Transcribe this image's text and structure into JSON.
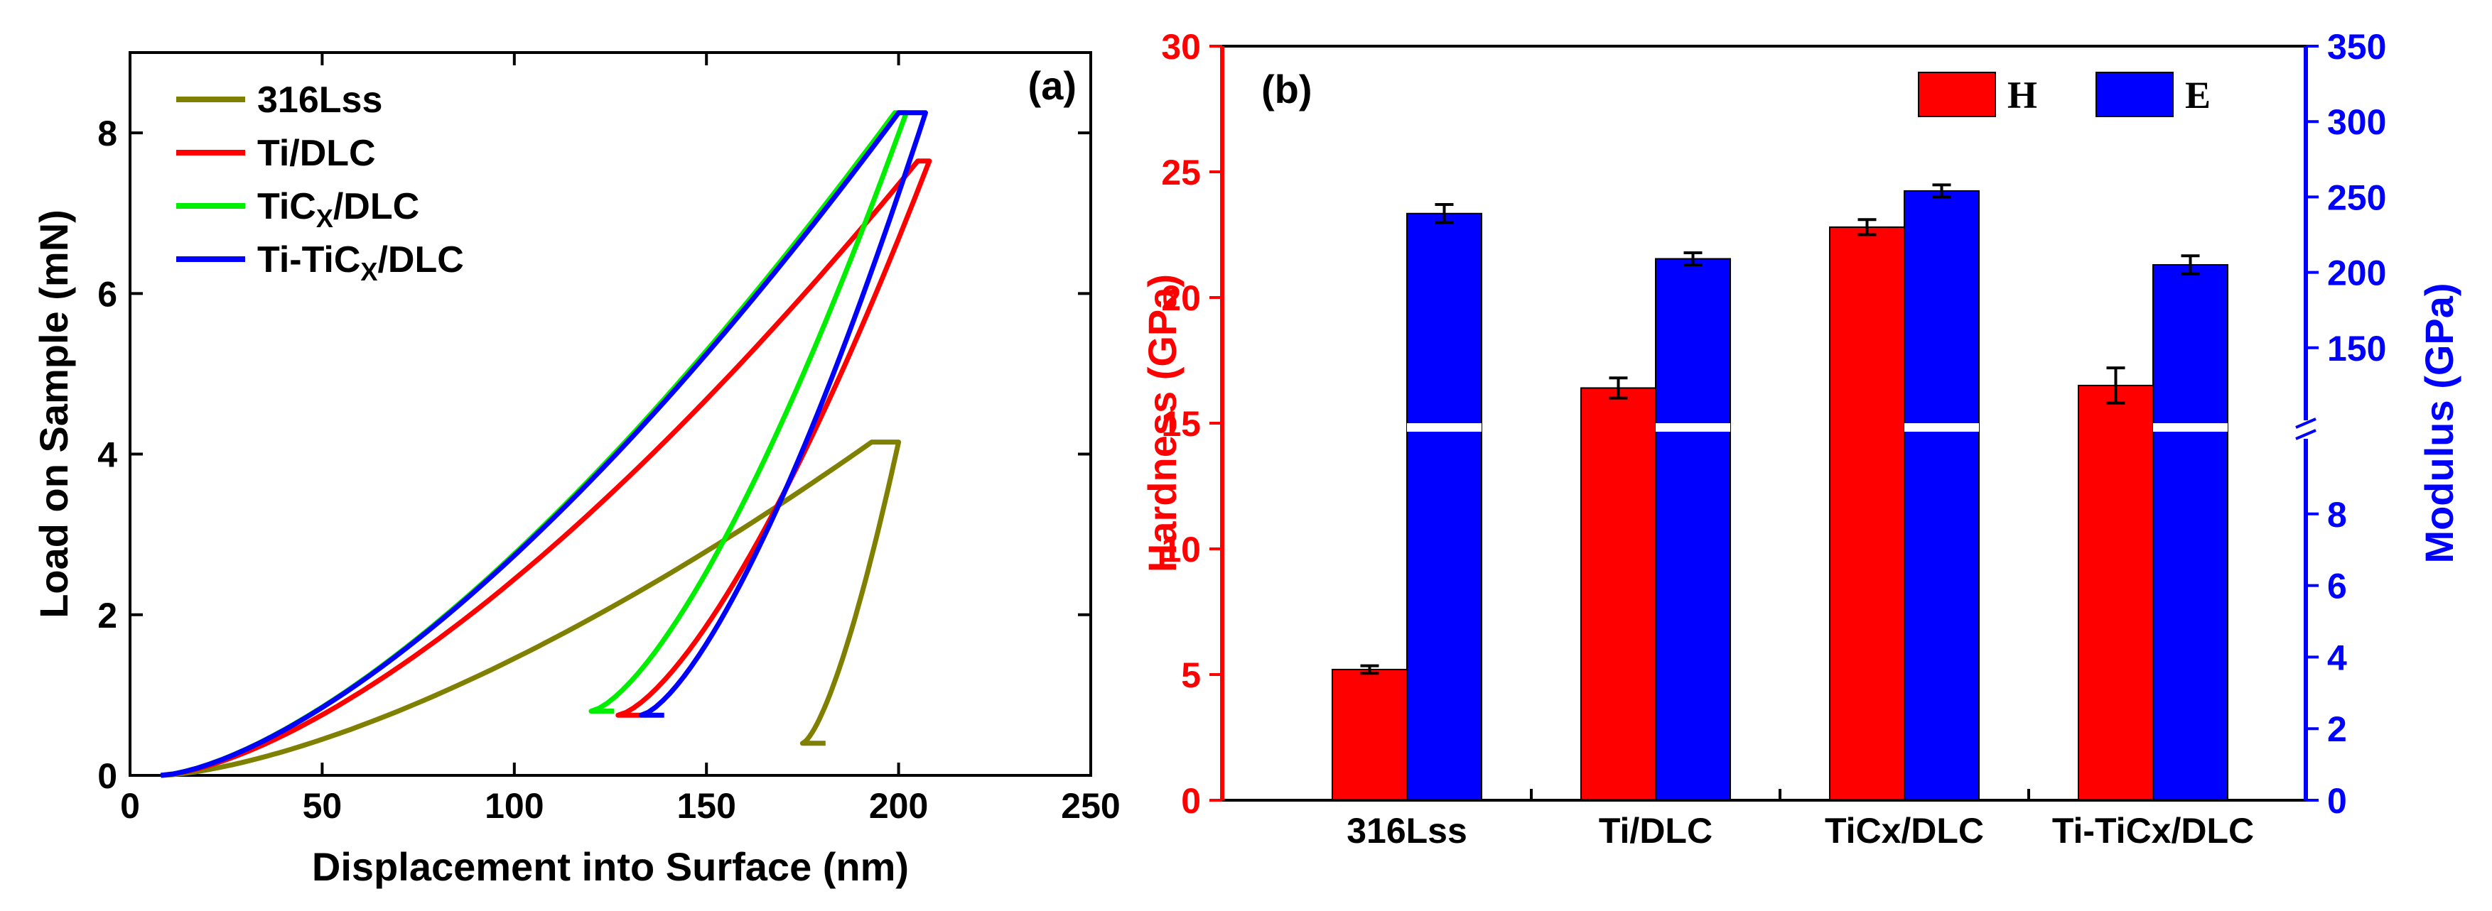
{
  "chart_data": [
    {
      "panel": "(a)",
      "type": "line",
      "xlabel": "Displacement into Surface (nm)",
      "ylabel": "Load on Sample (mN)",
      "xlim": [
        0,
        250
      ],
      "ylim": [
        0,
        9
      ],
      "xticks": [
        "0",
        "50",
        "100",
        "150",
        "200",
        "250"
      ],
      "yticks": [
        "0",
        "2",
        "4",
        "6",
        "8"
      ],
      "series": [
        {
          "name": "316Lss",
          "label_main": "316Lss",
          "label_sub": "",
          "label_tail": "",
          "color": "#808000",
          "max_depth": 200,
          "max_load": 4.15,
          "hold_start": 193,
          "residual_depth": 175,
          "end_load": 0.4
        },
        {
          "name": "Ti/DLC",
          "label_main": "Ti/DLC",
          "label_sub": "",
          "label_tail": "",
          "color": "#ff0000",
          "max_depth": 208,
          "max_load": 7.65,
          "hold_start": 205,
          "residual_depth": 127,
          "end_load": 0.75
        },
        {
          "name": "TiCx/DLC",
          "label_main": "TiC",
          "label_sub": "X",
          "label_tail": "/DLC",
          "color": "#00ee00",
          "max_depth": 202,
          "max_load": 8.25,
          "hold_start": 199,
          "residual_depth": 120,
          "end_load": 0.8
        },
        {
          "name": "Ti-TiCx/DLC",
          "label_main": "Ti-TiC",
          "label_sub": "X",
          "label_tail": "/DLC",
          "color": "#0000ff",
          "max_depth": 207,
          "max_load": 8.25,
          "hold_start": 200,
          "residual_depth": 133,
          "end_load": 0.75
        }
      ]
    },
    {
      "panel": "(b)",
      "type": "bar",
      "categories": [
        "316Lss",
        "Ti/DLC",
        "TiCx/DLC",
        "Ti-TiCx/DLC"
      ],
      "ylabel_left": "Hardness (GPa)",
      "ylabel_right": "Modulus  (GPa)",
      "ylim_left": [
        0,
        30
      ],
      "yticks_left": [
        "0",
        "5",
        "10",
        "15",
        "20",
        "25",
        "30"
      ],
      "yticks_right_upper": [
        "150",
        "200",
        "250",
        "300",
        "350"
      ],
      "yticks_right_lower": [
        "0",
        "2",
        "4",
        "6",
        "8"
      ],
      "right_axis_break": {
        "lower_range": [
          0,
          10
        ],
        "upper_range": [
          100,
          350
        ]
      },
      "series": [
        {
          "name": "H",
          "axis": "left",
          "color": "#ff0000",
          "values": [
            5.2,
            16.4,
            22.8,
            16.5
          ],
          "errors": [
            0.15,
            0.4,
            0.3,
            0.7
          ]
        },
        {
          "name": "E",
          "axis": "right",
          "color": "#0000ff",
          "values": [
            239,
            209,
            254,
            205
          ],
          "errors": [
            6,
            4,
            4,
            6
          ]
        }
      ],
      "colors": {
        "left_axis": "#ff0000",
        "right_axis": "#0000ff"
      }
    }
  ]
}
